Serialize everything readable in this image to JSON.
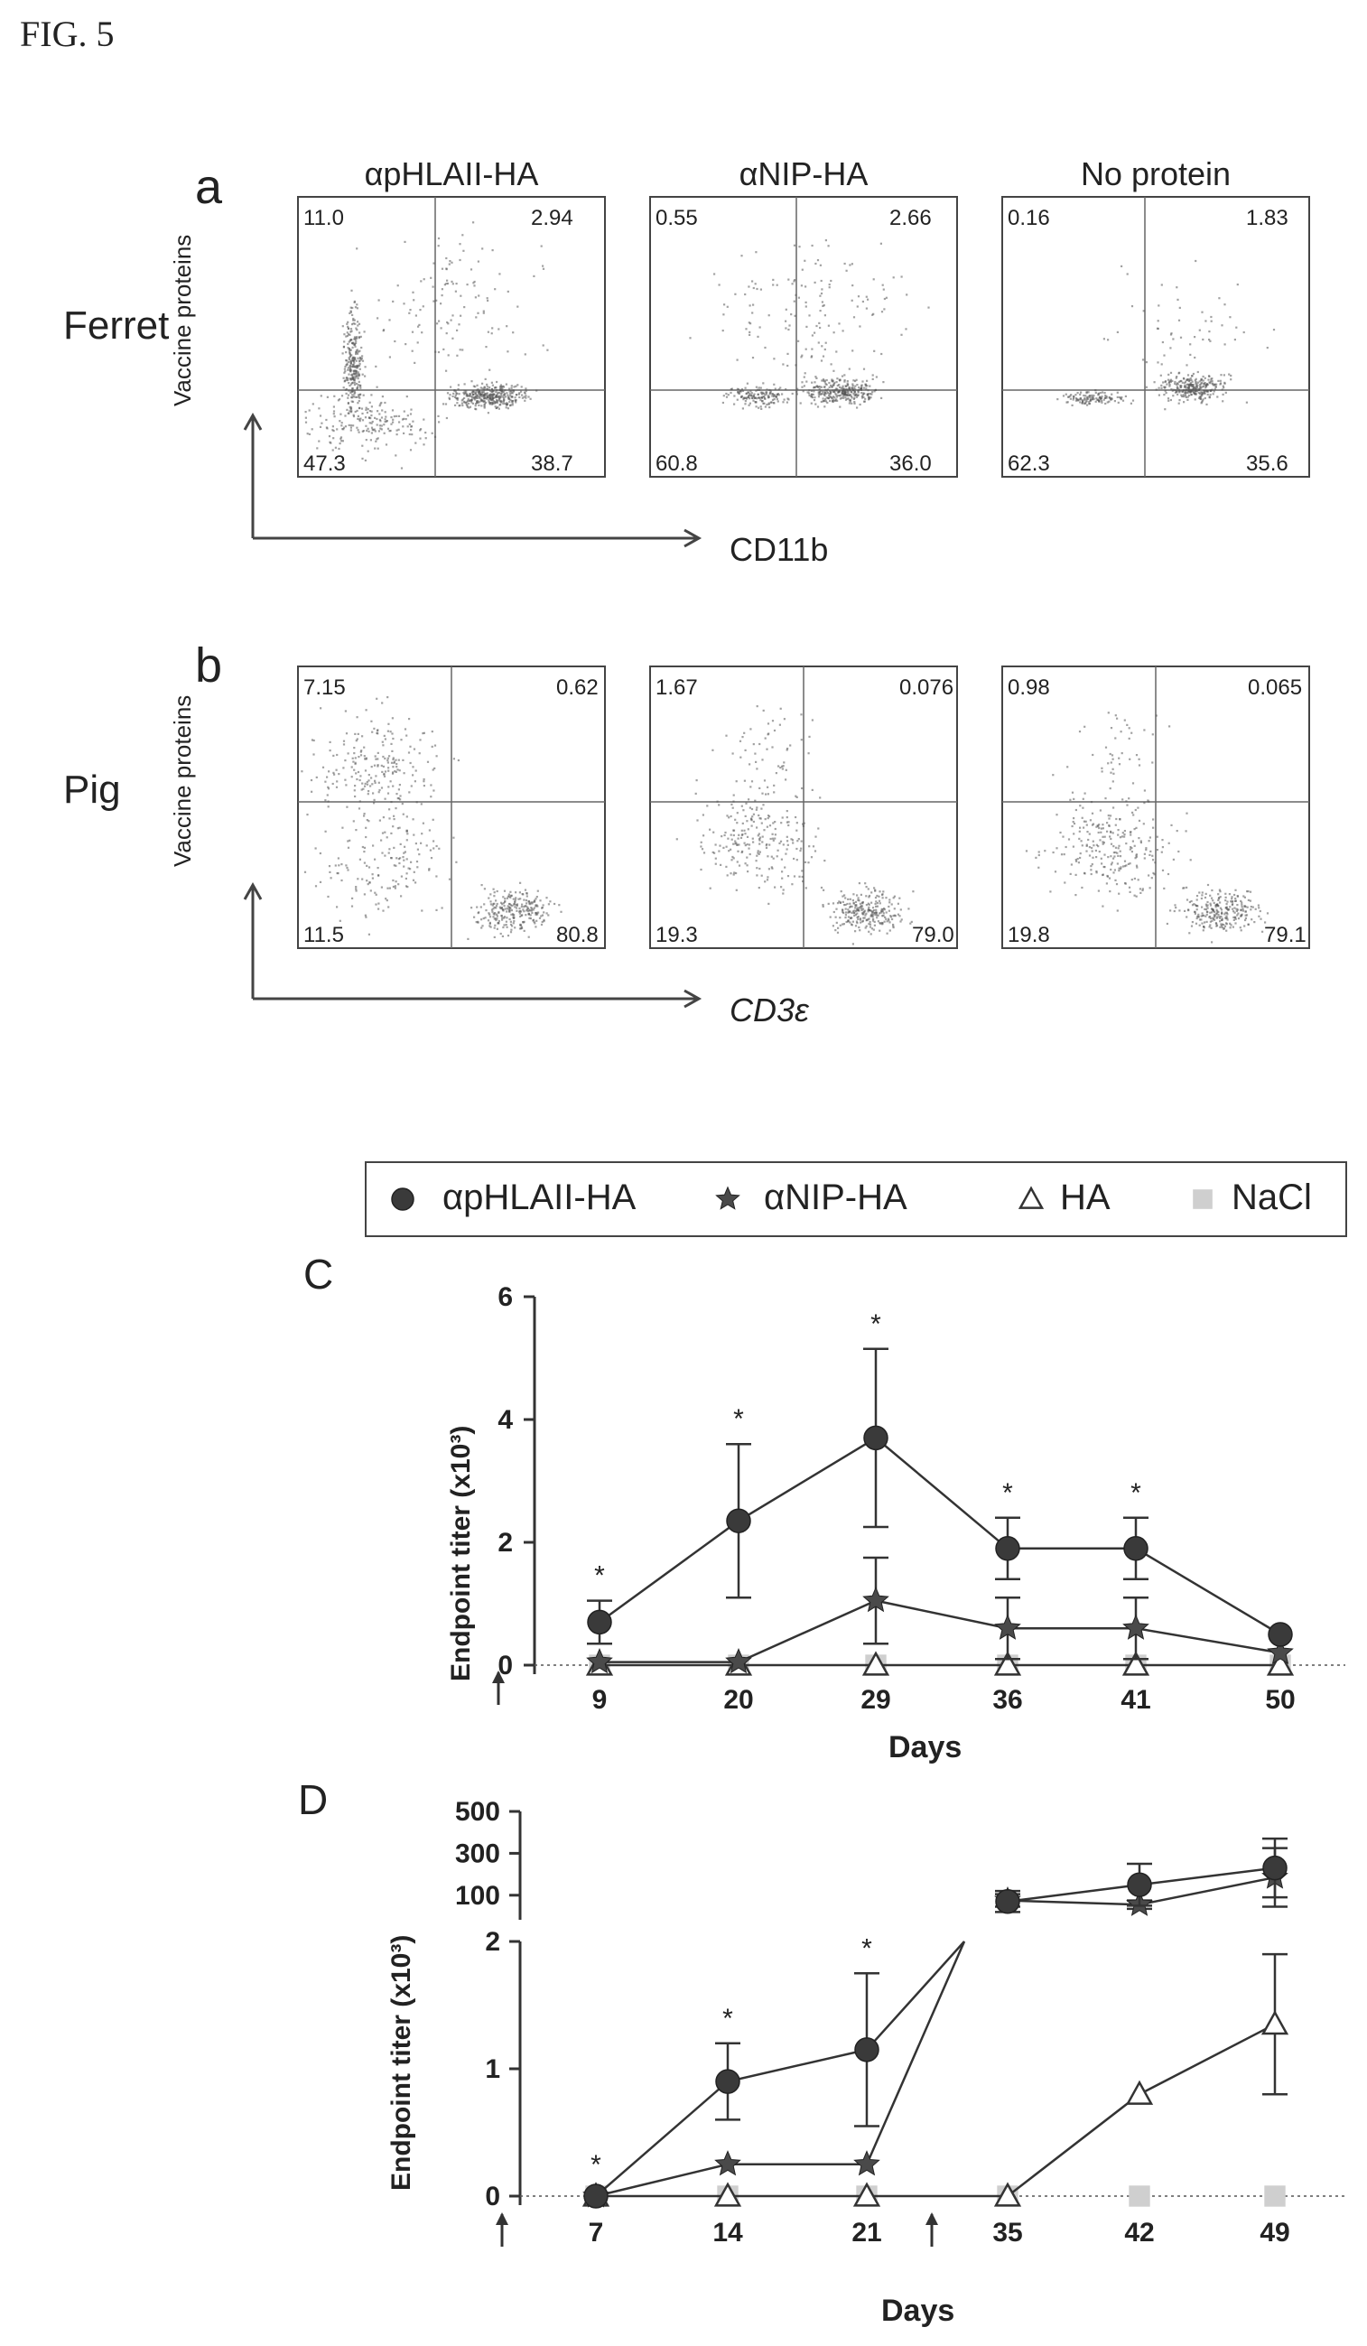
{
  "figure_label": "FIG. 5",
  "panel_labels": {
    "a": "a",
    "b": "b",
    "c": "C",
    "d": "D"
  },
  "species": {
    "ferret": "Ferret",
    "pig": "Pig"
  },
  "flow_axes": {
    "a": {
      "y": "Vaccine proteins",
      "x": "CD11b"
    },
    "b": {
      "y": "Vaccine proteins",
      "x": "CD3ε"
    }
  },
  "legend": [
    {
      "marker": "filled-circle",
      "label": "αpHLAII-HA"
    },
    {
      "marker": "filled-star",
      "label": "αNIP-HA"
    },
    {
      "marker": "open-triangle",
      "label": "HA"
    },
    {
      "marker": "grey-square",
      "label": "NaCl"
    }
  ],
  "colors": {
    "dark_marker": "#3a3a3a",
    "grey_marker": "#cfcfcf",
    "axis": "#333333"
  },
  "chart_data": [
    {
      "id": "flow-ferret",
      "type": "scatter",
      "xlabel": "CD11b",
      "ylabel": "Vaccine proteins",
      "panels": [
        {
          "title": "αpHLAII-HA",
          "quadrants": {
            "ul": "11.0",
            "ur": "2.94",
            "ll": "47.3",
            "lr": "38.7"
          }
        },
        {
          "title": "αNIP-HA",
          "quadrants": {
            "ul": "0.55",
            "ur": "2.66",
            "ll": "60.8",
            "lr": "36.0"
          }
        },
        {
          "title": "No protein",
          "quadrants": {
            "ul": "0.16",
            "ur": "1.83",
            "ll": "62.3",
            "lr": "35.6"
          }
        }
      ]
    },
    {
      "id": "flow-pig",
      "type": "scatter",
      "xlabel": "CD3ε",
      "ylabel": "Vaccine proteins",
      "panels": [
        {
          "quadrants": {
            "ul": "7.15",
            "ur": "0.62",
            "ll": "11.5",
            "lr": "80.8"
          }
        },
        {
          "quadrants": {
            "ul": "1.67",
            "ur": "0.076",
            "ll": "19.3",
            "lr": "79.0"
          }
        },
        {
          "quadrants": {
            "ul": "0.98",
            "ur": "0.065",
            "ll": "19.8",
            "lr": "79.1"
          }
        }
      ]
    },
    {
      "id": "line-c",
      "type": "line",
      "xlabel": "Days",
      "ylabel": "Endpoint titer (x10³)",
      "categories": [
        "9",
        "20",
        "29",
        "36",
        "41",
        "50"
      ],
      "ylim": [
        0,
        6
      ],
      "yticks": [
        0,
        2,
        4,
        6
      ],
      "significance": [
        "*",
        "*",
        "*",
        "*",
        "*",
        ""
      ],
      "series": [
        {
          "name": "αpHLAII-HA",
          "marker": "filled-circle",
          "values": [
            0.7,
            2.35,
            3.7,
            1.9,
            1.9,
            0.5
          ],
          "err": [
            0.35,
            1.25,
            1.45,
            0.5,
            0.5,
            0.1
          ]
        },
        {
          "name": "αNIP-HA",
          "marker": "filled-star",
          "values": [
            0.05,
            0.05,
            1.05,
            0.6,
            0.6,
            0.2
          ],
          "err": [
            0.05,
            0.05,
            0.7,
            0.5,
            0.5,
            0.05
          ]
        },
        {
          "name": "HA",
          "marker": "open-triangle",
          "values": [
            0.0,
            0.0,
            0.0,
            0.0,
            0.0,
            0.0
          ],
          "err": [
            0,
            0,
            0,
            0,
            0,
            0
          ]
        },
        {
          "name": "NaCl",
          "marker": "grey-square",
          "values": [
            0,
            0,
            0,
            0,
            0,
            0
          ],
          "err": [
            0,
            0,
            0,
            0,
            0,
            0
          ]
        }
      ]
    },
    {
      "id": "line-d",
      "type": "line",
      "xlabel": "Days",
      "ylabel": "Endpoint titer (x10³)",
      "categories": [
        "7",
        "14",
        "21",
        "35",
        "42",
        "49"
      ],
      "lower_ylim": [
        0,
        2
      ],
      "lower_yticks": [
        0,
        1,
        2
      ],
      "upper_ylim": [
        0,
        500
      ],
      "upper_yticks": [
        100,
        300,
        500
      ],
      "significance": [
        "*",
        "*",
        "*",
        "",
        "",
        ""
      ],
      "series": [
        {
          "name": "αpHLAII-HA",
          "marker": "filled-circle",
          "values": [
            0.0,
            0.9,
            1.15,
            70,
            150,
            230
          ],
          "err": [
            0.05,
            0.3,
            0.6,
            50,
            100,
            140
          ]
        },
        {
          "name": "αNIP-HA",
          "marker": "filled-star",
          "values": [
            0.0,
            0.25,
            0.25,
            75,
            55,
            185
          ],
          "err": [
            0,
            0.05,
            0.05,
            30,
            20,
            140
          ]
        },
        {
          "name": "HA",
          "marker": "open-triangle",
          "values": [
            0.0,
            0.0,
            0.0,
            0.0,
            0.8,
            1.35
          ],
          "err": [
            0,
            0,
            0,
            0,
            0.05,
            0.55
          ]
        },
        {
          "name": "NaCl",
          "marker": "grey-square",
          "values": [
            0,
            0,
            0,
            0,
            0,
            0
          ],
          "err": [
            0,
            0,
            0,
            0,
            0,
            0
          ]
        }
      ]
    }
  ]
}
